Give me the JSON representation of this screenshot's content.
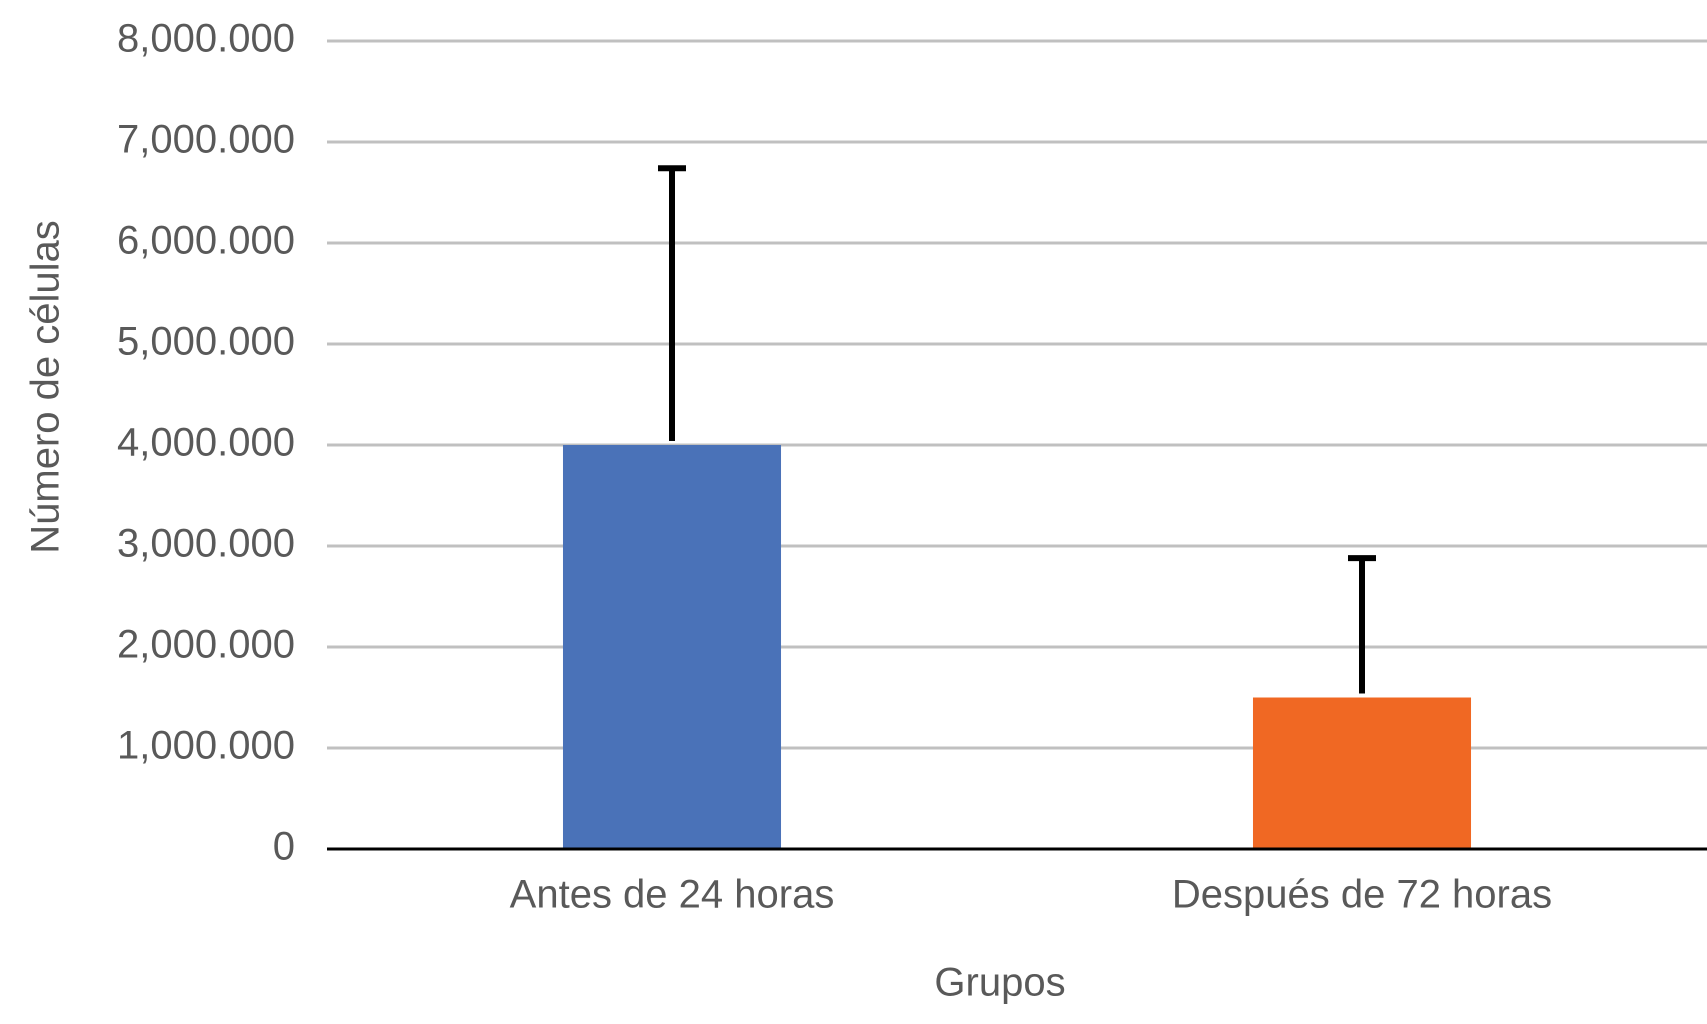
{
  "chart_data": {
    "type": "bar",
    "x_label": "Grupos",
    "y_label": "Número de células",
    "categories": [
      "Antes de 24 horas",
      "Después de 72 horas"
    ],
    "values": [
      4000000,
      1500000
    ],
    "errors": [
      2740000,
      1380000
    ],
    "colors": [
      "#4a72b8",
      "#f06823"
    ],
    "ylim": [
      0,
      8000000
    ],
    "yticks": [
      0,
      {
        "value": 1000000,
        "label": "1,000.000"
      },
      {
        "value": 2000000,
        "label": "2,000.000"
      },
      {
        "value": 3000000,
        "label": "3,000.000"
      },
      {
        "value": 4000000,
        "label": "4,000.000"
      },
      {
        "value": 5000000,
        "label": "5,000.000"
      },
      {
        "value": 6000000,
        "label": "6,000.000"
      },
      {
        "value": 7000000,
        "label": "7,000.000"
      },
      {
        "value": 8000000,
        "label": "8,000.000"
      }
    ],
    "grid": true
  }
}
